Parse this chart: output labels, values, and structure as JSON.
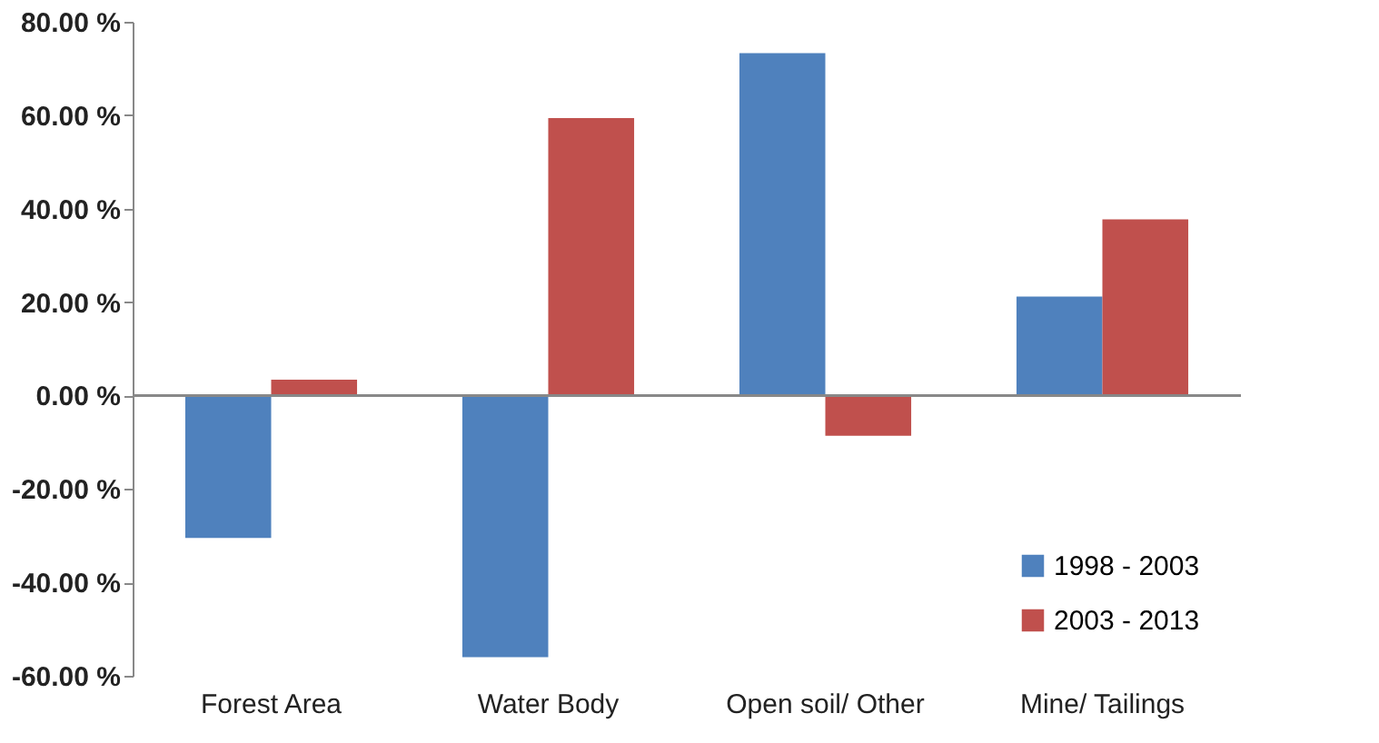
{
  "chart_data": {
    "type": "bar",
    "categories": [
      "Forest Area",
      "Water Body",
      "Open soil/ Other",
      "Mine/ Tailings"
    ],
    "series": [
      {
        "name": "1998 - 2003",
        "color": "#4f81bd",
        "values": [
          -30.5,
          -56,
          73.3,
          21.2
        ]
      },
      {
        "name": "2003 - 2013",
        "color": "#c0504d",
        "values": [
          3.4,
          59.4,
          -8.6,
          37.7
        ]
      }
    ],
    "ylim": [
      -60,
      80
    ],
    "yticks": [
      {
        "value": -60,
        "label": "-60.00 %"
      },
      {
        "value": -40,
        "label": "-40.00 %"
      },
      {
        "value": -20,
        "label": "-20.00 %"
      },
      {
        "value": 0,
        "label": "0.00 %"
      },
      {
        "value": 20,
        "label": "20.00 %"
      },
      {
        "value": 40,
        "label": "40.00 %"
      },
      {
        "value": 60,
        "label": "60.00 %"
      },
      {
        "value": 80,
        "label": "80.00 %"
      }
    ],
    "legend": "bottom right"
  }
}
